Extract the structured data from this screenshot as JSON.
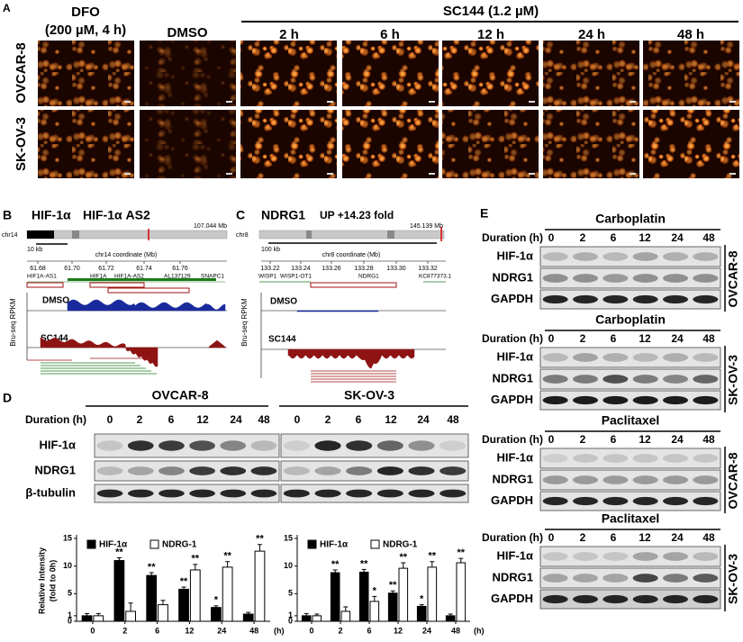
{
  "panel_a": {
    "label": "A",
    "dfo_lines": [
      "DFO",
      "(200 µM, 4 h)"
    ],
    "dmso": "DMSO",
    "sc144": "SC144 (1.2 µM)",
    "times": [
      "2 h",
      "6 h",
      "12 h",
      "24 h",
      "48 h"
    ],
    "rows": [
      "OVCAR-8",
      "SK-OV-3"
    ]
  },
  "panel_b": {
    "label": "B",
    "gene": "HIF-1α",
    "gene2": "HIF-1α AS2",
    "chrom": "chr14",
    "chrom_size": "107.044 Mb",
    "scale": "10 kb",
    "axis_title": "chr14 coordinate (Mb)",
    "ticks": [
      "61.68",
      "61.70",
      "61.72",
      "61.74",
      "61.76"
    ],
    "genes": [
      "HIF1A-AS1",
      "HIF1A",
      "HIF1A-AS2",
      "AL137129",
      "SNAPC1"
    ],
    "tracks": [
      "DMSO",
      "SC144"
    ],
    "y_title": "Bru-seq RPKM"
  },
  "panel_c": {
    "label": "C",
    "gene": "NDRG1",
    "note": "UP +14.23 fold",
    "chrom": "chr8",
    "chrom_size": "145.139 Mb",
    "scale": "100 kb",
    "axis_title": "chr8 coordinate (Mb)",
    "ticks": [
      "133.22",
      "133.24",
      "133.26",
      "133.28",
      "133.30",
      "133.32"
    ],
    "genes": [
      "WISP1",
      "WISP1-OT1",
      "NDRG1",
      "KC877373.1"
    ],
    "tracks": [
      "DMSO",
      "SC144"
    ],
    "y_title": "Bru-seq RPKM"
  },
  "panel_d": {
    "label": "D",
    "cell_lines": [
      "OVCAR-8",
      "SK-OV-3"
    ],
    "duration": "Duration (h)",
    "times": [
      "0",
      "2",
      "6",
      "12",
      "24",
      "48"
    ],
    "blots": [
      "HIF-1α",
      "NDRG1",
      "β-tubulin"
    ]
  },
  "chart_data": [
    {
      "type": "bar",
      "y_label_lines": [
        "Relative Intensity",
        "(fold to 0h)"
      ],
      "x_unit": "(h)",
      "categories": [
        "0",
        "2",
        "6",
        "12",
        "24",
        "48"
      ],
      "ylim": [
        0,
        15
      ],
      "yticks": [
        0,
        1,
        5,
        10,
        15
      ],
      "series": [
        {
          "name": "HIF-1α",
          "color": "#000000",
          "values": [
            1,
            11,
            8.3,
            5.8,
            2.5,
            1.3
          ],
          "errors": [
            0.4,
            0.5,
            0.5,
            0.4,
            0.3,
            0.3
          ],
          "stars": [
            null,
            "**",
            "**",
            "**",
            "*",
            null
          ]
        },
        {
          "name": "NDRG-1",
          "color": "#ffffff",
          "values": [
            1,
            1.8,
            3,
            9.3,
            9.8,
            12.7
          ],
          "errors": [
            0.4,
            1.5,
            0.8,
            1,
            1,
            1.2
          ],
          "stars": [
            null,
            null,
            null,
            "**",
            "**",
            "**"
          ]
        }
      ]
    },
    {
      "type": "bar",
      "y_label_lines": null,
      "x_unit": "(h)",
      "categories": [
        "0",
        "2",
        "6",
        "12",
        "24",
        "48"
      ],
      "ylim": [
        0,
        15
      ],
      "yticks": [
        0,
        1,
        5,
        10,
        15
      ],
      "series": [
        {
          "name": "HIF-1α",
          "color": "#000000",
          "values": [
            1,
            8.8,
            8.9,
            5.1,
            2.7,
            1
          ],
          "errors": [
            0.4,
            0.5,
            0.5,
            0.4,
            0.3,
            0.3
          ],
          "stars": [
            null,
            "**",
            "**",
            "**",
            "*",
            null
          ]
        },
        {
          "name": "NDRG-1",
          "color": "#ffffff",
          "values": [
            1,
            1.8,
            3.6,
            9.6,
            9.8,
            10.6
          ],
          "errors": [
            0.3,
            0.8,
            0.9,
            1,
            1,
            0.8
          ],
          "stars": [
            null,
            null,
            "*",
            "**",
            "**",
            "**"
          ]
        }
      ]
    }
  ],
  "panel_e": {
    "label": "E",
    "duration": "Duration (h)",
    "times": [
      "0",
      "2",
      "6",
      "12",
      "24",
      "48"
    ],
    "blocks": [
      {
        "drug": "Carboplatin",
        "cell_line": "OVCAR-8",
        "blots": [
          "HIF-1α",
          "NDRG1",
          "GAPDH"
        ]
      },
      {
        "drug": "Carboplatin",
        "cell_line": "SK-OV-3",
        "blots": [
          "HIF-1α",
          "NDRG1",
          "GAPDH"
        ]
      },
      {
        "drug": "Paclitaxel",
        "cell_line": "OVCAR-8",
        "blots": [
          "HIF-1α",
          "NDRG1",
          "GAPDH"
        ]
      },
      {
        "drug": "Paclitaxel",
        "cell_line": "SK-OV-3",
        "blots": [
          "HIF-1α",
          "NDRG1",
          "GAPDH"
        ]
      }
    ]
  }
}
